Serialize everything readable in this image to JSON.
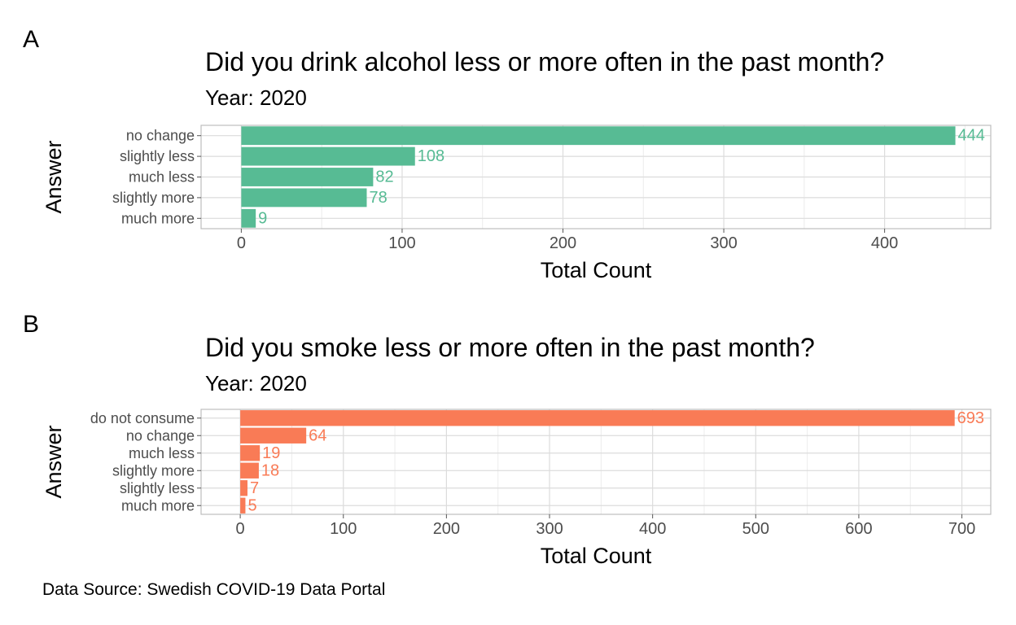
{
  "chart_data": [
    {
      "panel_label": "A",
      "type": "bar",
      "orientation": "horizontal",
      "title": "Did you drink alcohol less or more often in the past month?",
      "subtitle": "Year: 2020",
      "xlabel": "Total Count",
      "ylabel": "Answer",
      "categories": [
        "no change",
        "slightly less",
        "much less",
        "slightly more",
        "much more"
      ],
      "values": [
        444,
        108,
        82,
        78,
        9
      ],
      "xticks": [
        0,
        100,
        200,
        300,
        400
      ],
      "xlim": [
        -25,
        466
      ],
      "color": "#57bb94",
      "grid": true,
      "data_labels": true
    },
    {
      "panel_label": "B",
      "type": "bar",
      "orientation": "horizontal",
      "title": "Did you smoke less or more often in the past month?",
      "subtitle": "Year: 2020",
      "xlabel": "Total Count",
      "ylabel": "Answer",
      "categories": [
        "do not consume",
        "no change",
        "much less",
        "slightly more",
        "slightly less",
        "much more"
      ],
      "values": [
        693,
        64,
        19,
        18,
        7,
        5
      ],
      "xticks": [
        0,
        100,
        200,
        300,
        400,
        500,
        600,
        700
      ],
      "xlim": [
        -38,
        728
      ],
      "color": "#f97b56",
      "grid": true,
      "data_labels": true
    }
  ],
  "caption": "Data Source: Swedish COVID-19 Data Portal"
}
